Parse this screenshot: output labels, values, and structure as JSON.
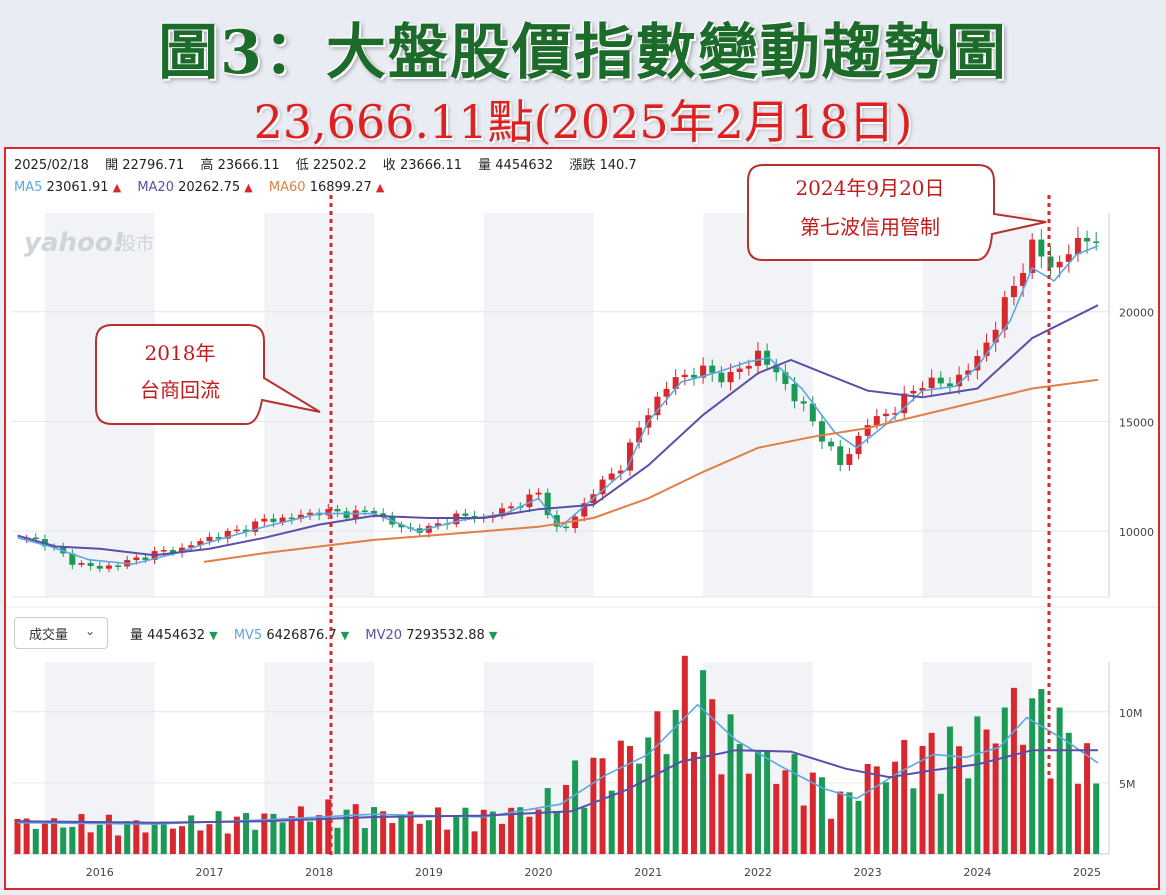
{
  "title": "圖3：大盤股價指數變動趨勢圖",
  "subtitle": "23,666.11點(2025年2月18日)",
  "ohlc": {
    "date": "2025/02/18",
    "open_label": "開",
    "open": "22796.71",
    "high_label": "高",
    "high": "23666.11",
    "low_label": "低",
    "low": "22502.2",
    "close_label": "收",
    "close": "23666.11",
    "vol_label": "量",
    "vol": "4454632",
    "chg_label": "漲跌",
    "chg": "140.7"
  },
  "ma": {
    "ma5_label": "MA5",
    "ma5": "23061.91",
    "ma20_label": "MA20",
    "ma20": "20262.75",
    "ma60_label": "MA60",
    "ma60": "16899.27",
    "arrow_up": "▲"
  },
  "watermark": {
    "brand": "yahoo!",
    "suffix": "股市"
  },
  "volume_bar": {
    "select_label": "成交量",
    "chevron": "⌄",
    "vol_label": "量",
    "vol": "4454632",
    "mv5_label": "MV5",
    "mv5": "6426876.7",
    "mv20_label": "MV20",
    "mv20": "7293532.88",
    "arrow_down": "▼"
  },
  "callouts": {
    "c1_line1": "2018年",
    "c1_line2": "台商回流",
    "c2_line1": "2024年9月20日",
    "c2_line2": "第七波信用管制"
  },
  "colors": {
    "up": "#d9272e",
    "down": "#1a9a55",
    "ma5": "#5ba8e0",
    "ma20": "#5a4fa8",
    "ma60": "#e07f45",
    "title_green": "#1d6b2b",
    "title_red": "#e02020"
  },
  "chart_data": [
    {
      "type": "line",
      "description_type": "candlestick",
      "x_ticks": [
        "2016",
        "2017",
        "2018",
        "2019",
        "2020",
        "2021",
        "2022",
        "2023",
        "2024",
        "2025"
      ],
      "y_ticks": [
        10000,
        15000,
        20000
      ],
      "ylim": [
        7000,
        24500
      ],
      "xlim": [
        2015.2,
        2025.2
      ],
      "grid": true,
      "series": [
        {
          "name": "MA5",
          "values": [
            [
              2015.25,
              9700
            ],
            [
              2015.55,
              9300
            ],
            [
              2015.9,
              8700
            ],
            [
              2016.3,
              8500
            ],
            [
              2016.7,
              9000
            ],
            [
              2017.0,
              9500
            ],
            [
              2017.5,
              10200
            ],
            [
              2018.0,
              10800
            ],
            [
              2018.5,
              10800
            ],
            [
              2018.9,
              10000
            ],
            [
              2019.3,
              10500
            ],
            [
              2019.7,
              10800
            ],
            [
              2020.0,
              11500
            ],
            [
              2020.2,
              10200
            ],
            [
              2020.5,
              11500
            ],
            [
              2020.8,
              12800
            ],
            [
              2021.0,
              15000
            ],
            [
              2021.3,
              16800
            ],
            [
              2021.6,
              17200
            ],
            [
              2021.9,
              17700
            ],
            [
              2022.1,
              17900
            ],
            [
              2022.4,
              16500
            ],
            [
              2022.7,
              14500
            ],
            [
              2022.9,
              13800
            ],
            [
              2023.2,
              15000
            ],
            [
              2023.5,
              16400
            ],
            [
              2023.8,
              16600
            ],
            [
              2024.0,
              17500
            ],
            [
              2024.3,
              19600
            ],
            [
              2024.5,
              22000
            ],
            [
              2024.7,
              21400
            ],
            [
              2024.9,
              22600
            ],
            [
              2025.1,
              23000
            ]
          ]
        },
        {
          "name": "MA20",
          "values": [
            [
              2015.25,
              9800
            ],
            [
              2015.6,
              9300
            ],
            [
              2016.0,
              9200
            ],
            [
              2016.5,
              8900
            ],
            [
              2017.0,
              9200
            ],
            [
              2017.5,
              9700
            ],
            [
              2018.0,
              10300
            ],
            [
              2018.5,
              10700
            ],
            [
              2019.0,
              10600
            ],
            [
              2019.5,
              10600
            ],
            [
              2020.0,
              11000
            ],
            [
              2020.5,
              11200
            ],
            [
              2021.0,
              13000
            ],
            [
              2021.5,
              15300
            ],
            [
              2022.0,
              17200
            ],
            [
              2022.3,
              17800
            ],
            [
              2022.6,
              17200
            ],
            [
              2023.0,
              16400
            ],
            [
              2023.5,
              16100
            ],
            [
              2024.0,
              16500
            ],
            [
              2024.5,
              18800
            ],
            [
              2025.1,
              20300
            ]
          ]
        },
        {
          "name": "MA60",
          "values": [
            [
              2016.95,
              8600
            ],
            [
              2017.5,
              9000
            ],
            [
              2018.0,
              9300
            ],
            [
              2018.5,
              9600
            ],
            [
              2019.0,
              9800
            ],
            [
              2019.5,
              10000
            ],
            [
              2020.0,
              10200
            ],
            [
              2020.5,
              10600
            ],
            [
              2021.0,
              11500
            ],
            [
              2021.5,
              12700
            ],
            [
              2022.0,
              13800
            ],
            [
              2022.5,
              14300
            ],
            [
              2023.0,
              14700
            ],
            [
              2023.5,
              15300
            ],
            [
              2024.0,
              15900
            ],
            [
              2024.5,
              16500
            ],
            [
              2025.1,
              16900
            ]
          ]
        }
      ],
      "candle_close_path": [
        [
          2015.25,
          9700
        ],
        [
          2015.5,
          9500
        ],
        [
          2015.75,
          8600
        ],
        [
          2016.0,
          8300
        ],
        [
          2016.25,
          8600
        ],
        [
          2016.5,
          9000
        ],
        [
          2016.75,
          9200
        ],
        [
          2017.0,
          9700
        ],
        [
          2017.25,
          10000
        ],
        [
          2017.5,
          10500
        ],
        [
          2017.75,
          10600
        ],
        [
          2018.0,
          10900
        ],
        [
          2018.25,
          10800
        ],
        [
          2018.5,
          10900
        ],
        [
          2018.75,
          10100
        ],
        [
          2019.0,
          10100
        ],
        [
          2019.25,
          10700
        ],
        [
          2019.5,
          10600
        ],
        [
          2019.75,
          11100
        ],
        [
          2020.0,
          11700
        ],
        [
          2020.2,
          9800
        ],
        [
          2020.5,
          11800
        ],
        [
          2020.75,
          13000
        ],
        [
          2021.0,
          15500
        ],
        [
          2021.25,
          17000
        ],
        [
          2021.5,
          17300
        ],
        [
          2021.75,
          17000
        ],
        [
          2022.0,
          18100
        ],
        [
          2022.25,
          16700
        ],
        [
          2022.5,
          15000
        ],
        [
          2022.75,
          13000
        ],
        [
          2023.0,
          14900
        ],
        [
          2023.25,
          15600
        ],
        [
          2023.5,
          16800
        ],
        [
          2023.75,
          16700
        ],
        [
          2024.0,
          17800
        ],
        [
          2024.25,
          20300
        ],
        [
          2024.5,
          23000
        ],
        [
          2024.7,
          21900
        ],
        [
          2024.85,
          22900
        ],
        [
          2025.05,
          23400
        ],
        [
          2025.15,
          23666
        ]
      ]
    },
    {
      "type": "bar",
      "description_type": "volume",
      "yticks_labels": [
        "10M",
        "5M"
      ],
      "y_ticks": [
        10000000,
        5000000
      ],
      "ylim": [
        0,
        13500000
      ],
      "xlim": [
        2015.2,
        2025.2
      ],
      "x_ticks": [
        "2016",
        "2017",
        "2018",
        "2019",
        "2020",
        "2021",
        "2022",
        "2023",
        "2024",
        "2025"
      ],
      "volume_profile": [
        [
          2015.25,
          2.2
        ],
        [
          2016.0,
          2.1
        ],
        [
          2016.5,
          2.0
        ],
        [
          2017.0,
          2.2
        ],
        [
          2017.5,
          2.5
        ],
        [
          2018.0,
          2.9
        ],
        [
          2018.5,
          2.8
        ],
        [
          2019.0,
          2.5
        ],
        [
          2019.5,
          2.6
        ],
        [
          2020.0,
          3.2
        ],
        [
          2020.3,
          5.0
        ],
        [
          2020.6,
          6.0
        ],
        [
          2020.9,
          7.5
        ],
        [
          2021.1,
          8.5
        ],
        [
          2021.3,
          10.5
        ],
        [
          2021.45,
          12.0
        ],
        [
          2021.6,
          9.0
        ],
        [
          2021.9,
          7.0
        ],
        [
          2022.2,
          6.0
        ],
        [
          2022.5,
          5.0
        ],
        [
          2022.75,
          3.5
        ],
        [
          2023.0,
          5.5
        ],
        [
          2023.3,
          6.5
        ],
        [
          2023.6,
          7.0
        ],
        [
          2023.9,
          7.2
        ],
        [
          2024.2,
          9.5
        ],
        [
          2024.45,
          10.5
        ],
        [
          2024.7,
          8.5
        ],
        [
          2024.9,
          7.5
        ],
        [
          2025.1,
          4.8
        ]
      ],
      "series": [
        {
          "name": "MV5",
          "values": [
            [
              2015.25,
              2.2
            ],
            [
              2016.5,
              2.1
            ],
            [
              2017.5,
              2.4
            ],
            [
              2018.5,
              2.8
            ],
            [
              2019.5,
              2.6
            ],
            [
              2020.2,
              3.5
            ],
            [
              2020.6,
              5.5
            ],
            [
              2021.0,
              7.0
            ],
            [
              2021.45,
              10.5
            ],
            [
              2021.8,
              8.0
            ],
            [
              2022.2,
              6.2
            ],
            [
              2022.6,
              4.6
            ],
            [
              2022.9,
              3.9
            ],
            [
              2023.3,
              5.8
            ],
            [
              2023.6,
              7.0
            ],
            [
              2023.9,
              6.8
            ],
            [
              2024.2,
              7.5
            ],
            [
              2024.45,
              9.6
            ],
            [
              2024.8,
              8.0
            ],
            [
              2025.1,
              6.4
            ]
          ]
        },
        {
          "name": "MV20",
          "values": [
            [
              2015.25,
              2.3
            ],
            [
              2016.5,
              2.2
            ],
            [
              2017.5,
              2.3
            ],
            [
              2018.5,
              2.6
            ],
            [
              2019.5,
              2.7
            ],
            [
              2020.3,
              3.0
            ],
            [
              2020.8,
              4.5
            ],
            [
              2021.3,
              6.5
            ],
            [
              2021.8,
              7.3
            ],
            [
              2022.3,
              7.2
            ],
            [
              2022.8,
              6.0
            ],
            [
              2023.2,
              5.4
            ],
            [
              2023.6,
              5.9
            ],
            [
              2024.0,
              6.3
            ],
            [
              2024.5,
              7.3
            ],
            [
              2025.1,
              7.3
            ]
          ]
        }
      ]
    }
  ]
}
